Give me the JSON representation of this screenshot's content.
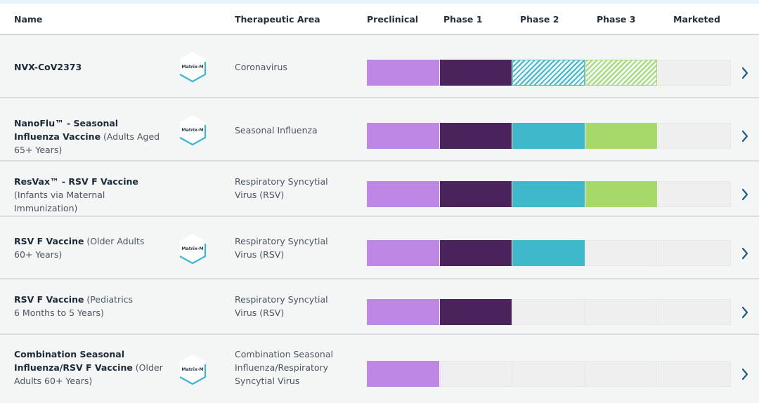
{
  "header": {
    "columns": {
      "name": "Name",
      "area": "Therapeutic Area",
      "phases": [
        "Preclinical",
        "Phase 1",
        "Phase 2",
        "Phase 3",
        "Marketed"
      ]
    }
  },
  "colors": {
    "preclinical": "#be87e6",
    "phase1": "#4a235c",
    "phase2": "#40b8cb",
    "phase3": "#a6d96a",
    "empty": "#efefef",
    "chevron": "#1d5a8a",
    "badge_accent": "#3bb4d8"
  },
  "badge_label": "Matrix-M",
  "rows": [
    {
      "name_bold": "NVX-CoV2373",
      "name_rest": "",
      "area": "Coronavirus",
      "matrix_m": true,
      "phases": [
        "complete",
        "complete",
        "ongoing",
        "ongoing",
        "none"
      ]
    },
    {
      "name_bold": "NanoFlu™ - Seasonal Influenza Vaccine",
      "name_rest": " (Adults Aged 65+ Years)",
      "area": "Seasonal Influenza",
      "matrix_m": true,
      "phases": [
        "complete",
        "complete",
        "complete",
        "complete",
        "none"
      ]
    },
    {
      "name_bold": "ResVax™ - RSV F Vaccine",
      "name_rest": " (Infants via Maternal Immunization)",
      "area": "Respiratory Syncytial Virus (RSV)",
      "matrix_m": false,
      "phases": [
        "complete",
        "complete",
        "complete",
        "complete",
        "none"
      ]
    },
    {
      "name_bold": "RSV F Vaccine",
      "name_rest": " (Older Adults 60+ Years)",
      "area": "Respiratory Syncytial Virus (RSV)",
      "matrix_m": true,
      "phases": [
        "complete",
        "complete",
        "complete",
        "none",
        "none"
      ]
    },
    {
      "name_bold": "RSV F Vaccine",
      "name_rest": " (Pediatrics 6 Months to 5 Years)",
      "area": "Respiratory Syncytial Virus (RSV)",
      "matrix_m": false,
      "phases": [
        "complete",
        "complete",
        "none",
        "none",
        "none"
      ]
    },
    {
      "name_bold": "Combination Seasonal Influenza/RSV F Vaccine",
      "name_rest": " (Older Adults 60+ Years)",
      "area": "Combination Seasonal Influenza/Respiratory Syncytial Virus",
      "matrix_m": true,
      "phases": [
        "complete",
        "none",
        "none",
        "none",
        "none"
      ]
    }
  ]
}
